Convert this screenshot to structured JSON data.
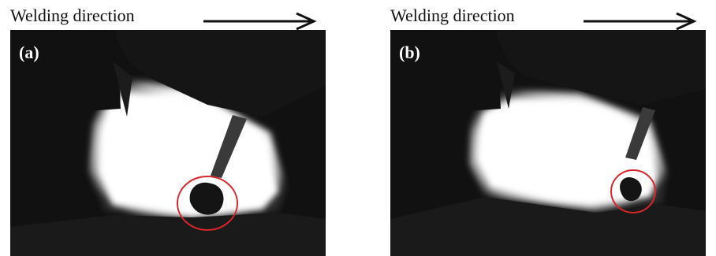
{
  "panels": [
    {
      "label": "(a)",
      "caption": "Welding direction"
    },
    {
      "label": "(b)",
      "caption": "Welding direction"
    }
  ],
  "colors": {
    "background": "#111111",
    "arc_glow": "#ffffff",
    "highlight_circle": "#d8262c",
    "caption_text": "#111111"
  },
  "icons": [
    "arrow-right-icon"
  ]
}
